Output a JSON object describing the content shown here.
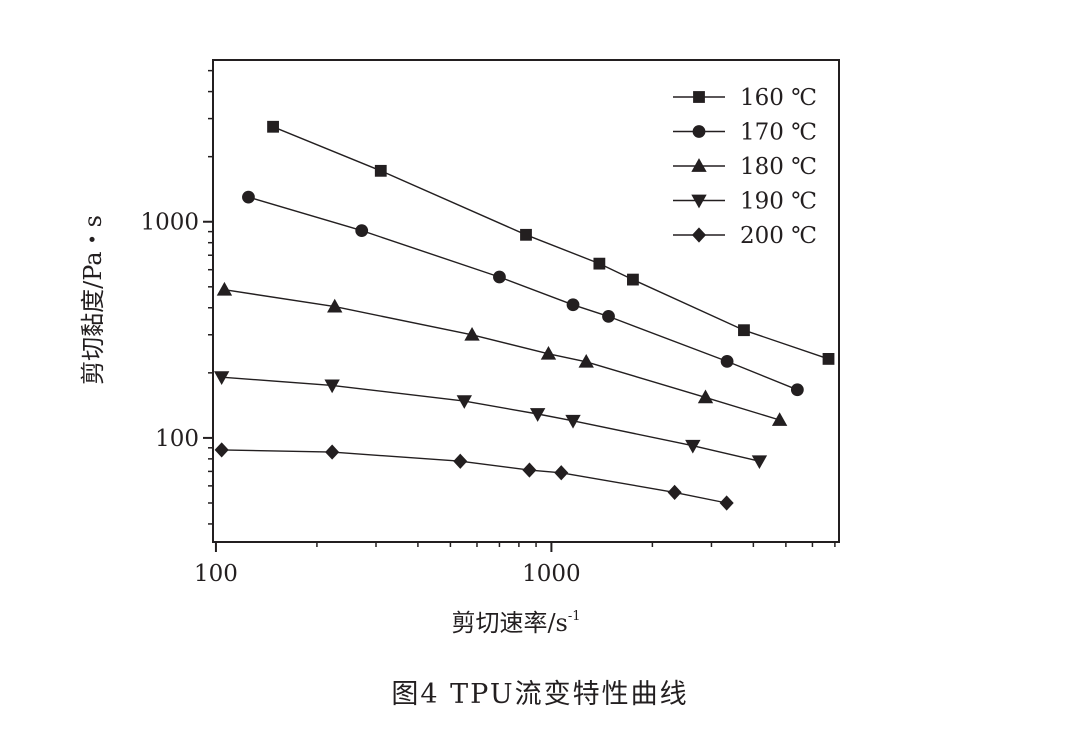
{
  "figure_caption": "图4   TPU流变特性曲线",
  "chart_data": {
    "type": "line",
    "xlabel": "剪切速率/s",
    "xlabel_sup": "-1",
    "ylabel": "剪切黏度/Pa・s",
    "xscale": "log",
    "yscale": "log",
    "xlim": [
      98,
      7200
    ],
    "ylim": [
      33,
      5600
    ],
    "xticks": [
      {
        "value": 100,
        "label": "100"
      },
      {
        "value": 1000,
        "label": "1000"
      }
    ],
    "yticks": [
      {
        "value": 100,
        "label": "100"
      },
      {
        "value": 1000,
        "label": "1000"
      }
    ],
    "grid": false,
    "legend_position": "top-right",
    "color": "#231f20",
    "series": [
      {
        "name": "160 ℃",
        "marker": "square",
        "x": [
          148,
          310,
          840,
          1390,
          1750,
          3750,
          6700
        ],
        "y": [
          2750,
          1720,
          870,
          640,
          540,
          315,
          232
        ]
      },
      {
        "name": "170 ℃",
        "marker": "circle",
        "x": [
          125,
          272,
          700,
          1160,
          1480,
          3340,
          5410
        ],
        "y": [
          1300,
          910,
          555,
          413,
          365,
          226,
          167
        ]
      },
      {
        "name": "180 ℃",
        "marker": "triangle-up",
        "x": [
          106,
          226,
          580,
          980,
          1270,
          2880,
          4790
        ],
        "y": [
          485,
          405,
          300,
          245,
          225,
          154,
          121
        ]
      },
      {
        "name": "190 ℃",
        "marker": "triangle-down",
        "x": [
          104,
          222,
          550,
          910,
          1160,
          2640,
          4170
        ],
        "y": [
          191,
          175,
          148,
          129,
          120,
          92,
          78
        ]
      },
      {
        "name": "200 ℃",
        "marker": "diamond",
        "x": [
          104,
          222,
          535,
          860,
          1070,
          2330,
          3330
        ],
        "y": [
          88,
          86,
          78,
          71,
          69,
          56,
          50
        ]
      }
    ]
  }
}
